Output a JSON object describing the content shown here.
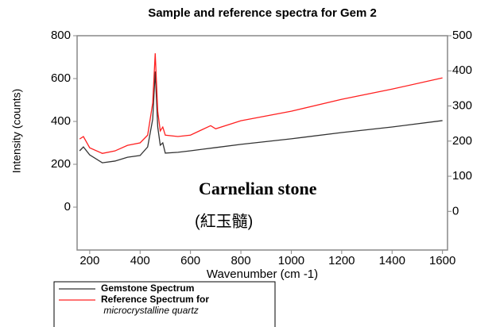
{
  "chart_data": {
    "type": "line",
    "title": "Sample and reference spectra for Gem 2",
    "x_label": "Wavenumber (cm -1)",
    "y_label": "Intensity (counts)",
    "annotations": [
      "Carnelian stone",
      "(紅玉髓)"
    ],
    "xlim": [
      150,
      1620
    ],
    "xticks": [
      200,
      400,
      600,
      800,
      1000,
      1200,
      1400,
      1600
    ],
    "ylim": [
      -200,
      800
    ],
    "yticks": [
      0,
      200,
      400,
      600,
      800
    ],
    "y2lim": [
      -110,
      500
    ],
    "y2ticks": [
      0,
      100,
      200,
      300,
      400,
      500
    ],
    "legend": "bottom-left",
    "series": [
      {
        "name": "Gemstone Spectrum",
        "color": "#333333",
        "axis": "y",
        "x": [
          160,
          175,
          200,
          250,
          300,
          350,
          400,
          430,
          450,
          460,
          470,
          480,
          490,
          500,
          550,
          600,
          700,
          800,
          1000,
          1200,
          1400,
          1600
        ],
        "values": [
          263,
          281,
          244,
          207,
          215,
          233,
          241,
          281,
          410,
          633,
          374,
          289,
          300,
          252,
          256,
          263,
          278,
          293,
          319,
          348,
          374,
          404
        ]
      },
      {
        "name": "Reference Spectrum for microcrystalline quartz",
        "color": "#ff2020",
        "axis": "y2",
        "x": [
          160,
          175,
          200,
          250,
          300,
          350,
          400,
          430,
          450,
          460,
          470,
          480,
          490,
          500,
          550,
          600,
          680,
          700,
          800,
          1000,
          1200,
          1400,
          1600
        ],
        "values": [
          206,
          213,
          181,
          165,
          172,
          188,
          195,
          217,
          308,
          450,
          285,
          229,
          240,
          217,
          213,
          217,
          244,
          235,
          258,
          285,
          319,
          348,
          380
        ]
      }
    ]
  }
}
